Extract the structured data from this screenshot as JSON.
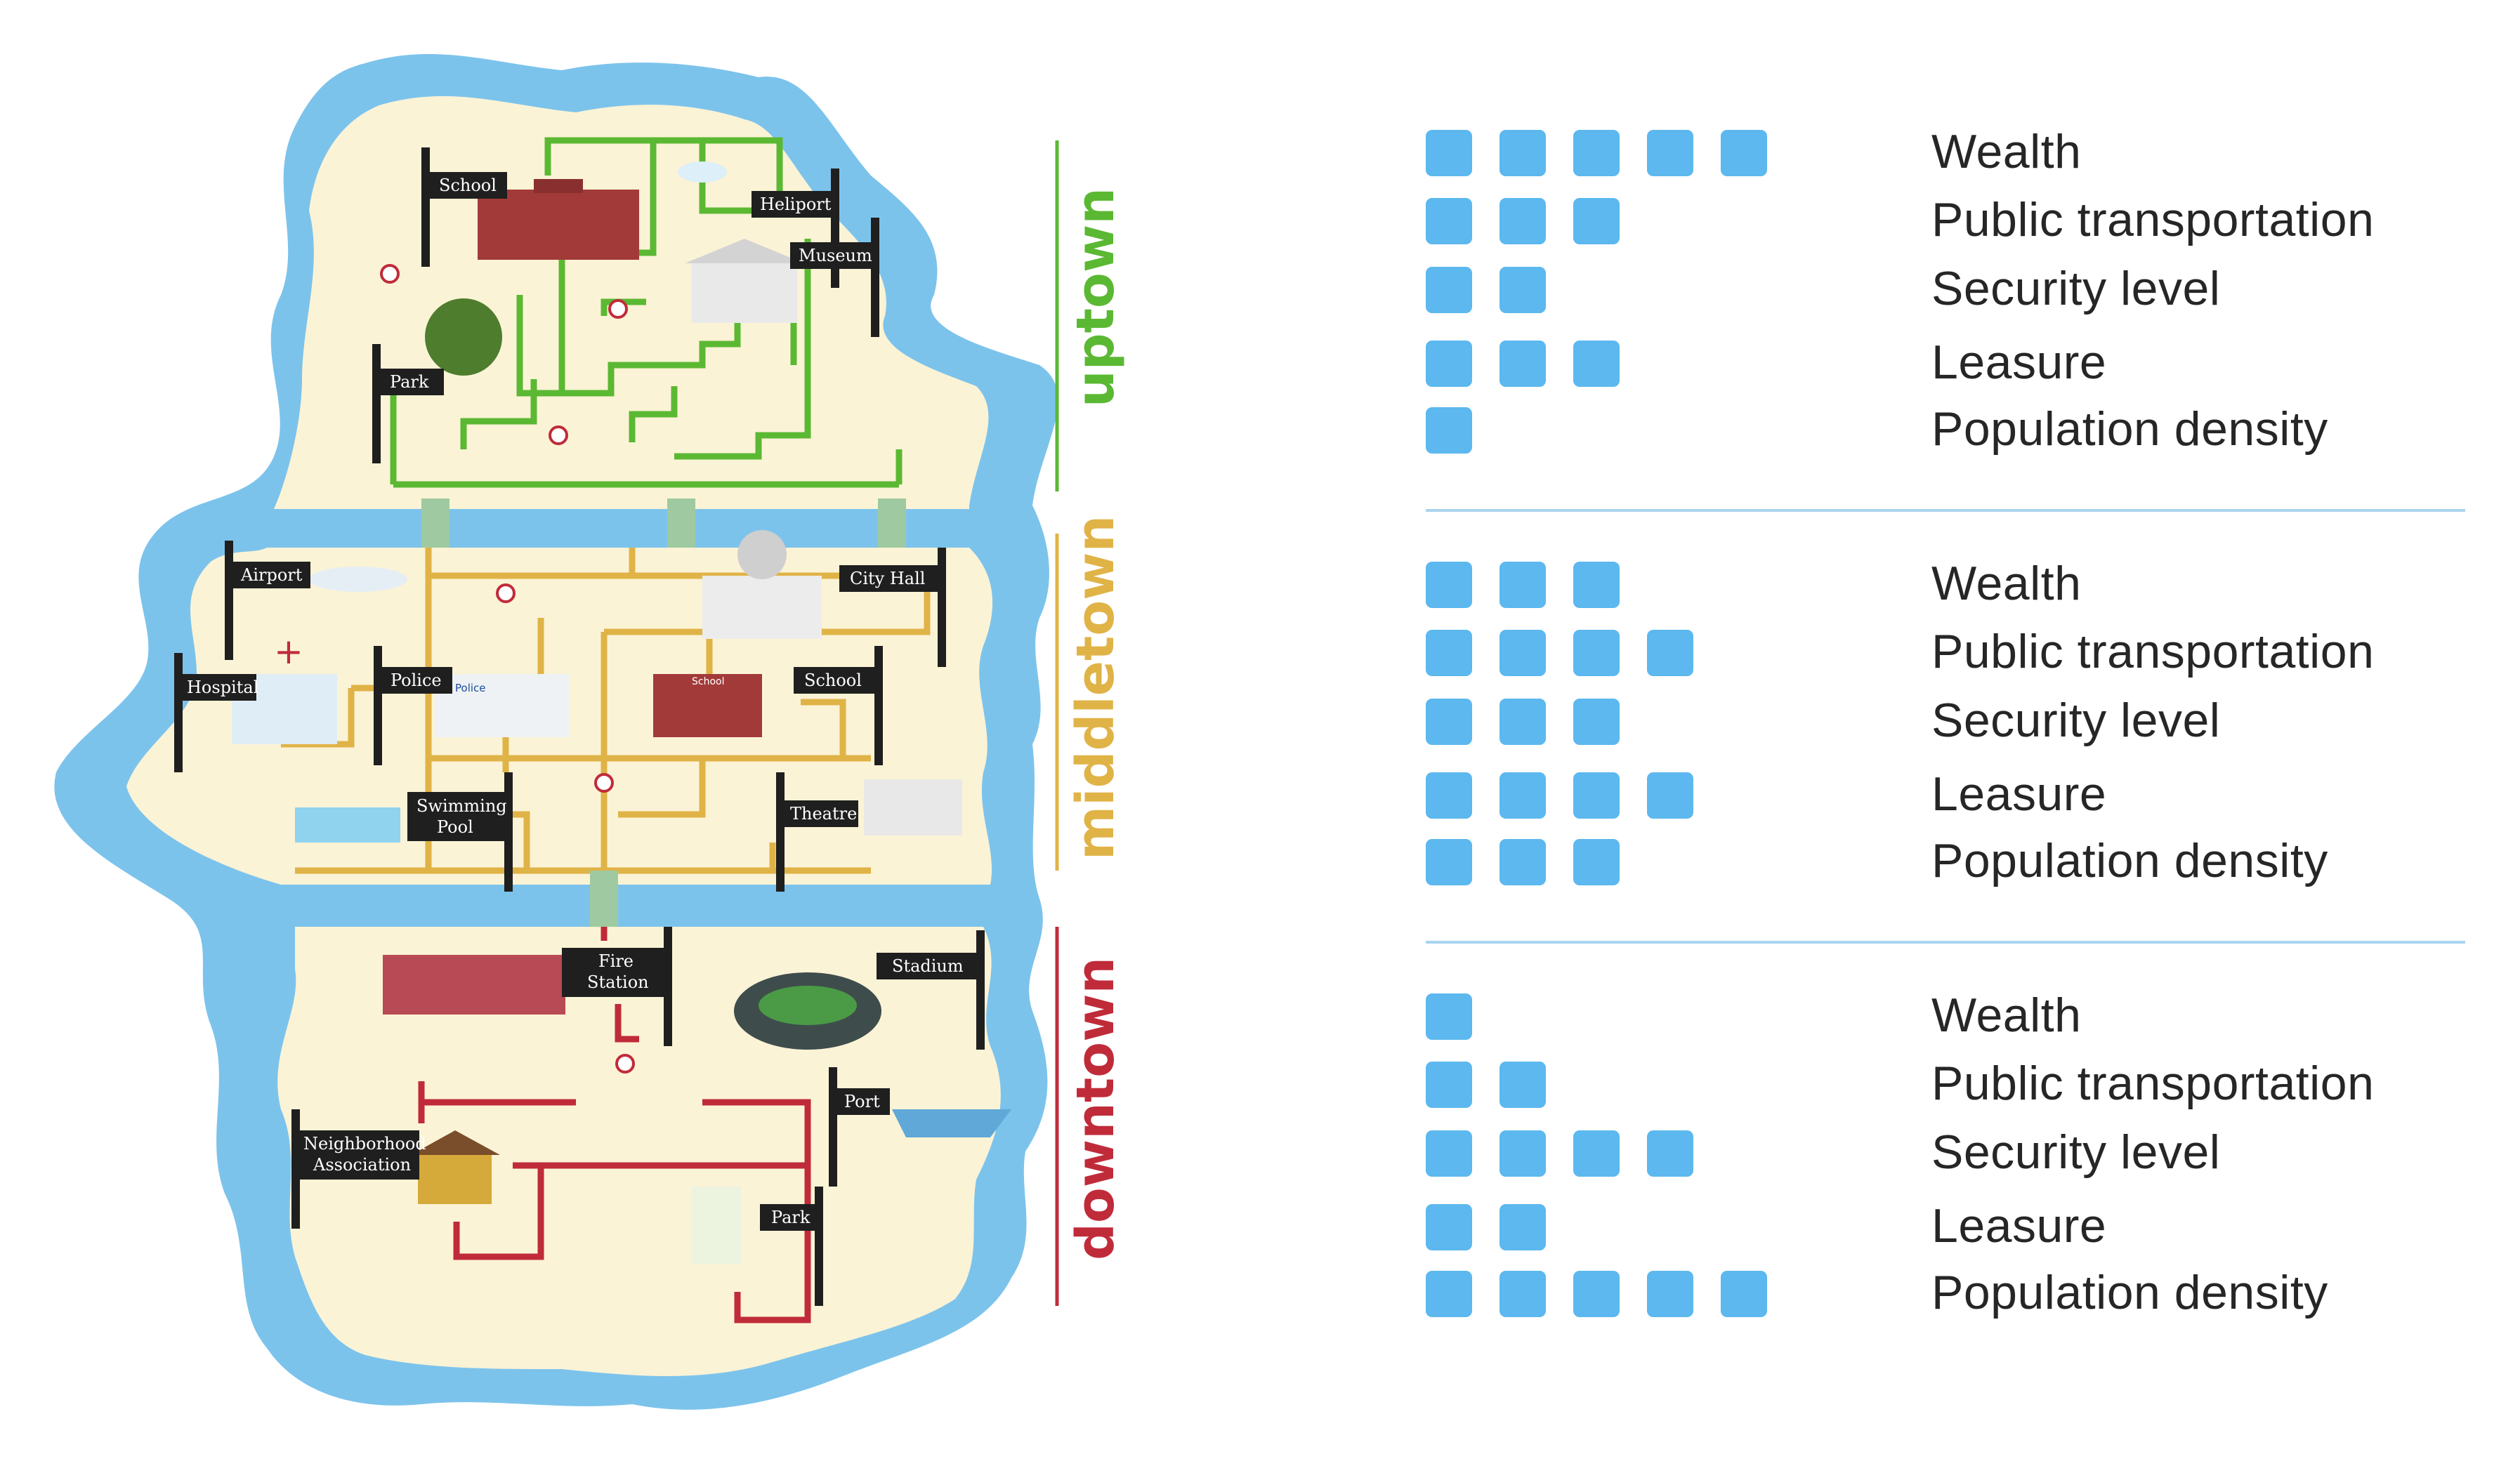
{
  "map": {
    "zones": [
      {
        "name": "uptown",
        "color": "#5bb833"
      },
      {
        "name": "middletown",
        "color": "#e0b347"
      },
      {
        "name": "downtown",
        "color": "#c02b3a"
      }
    ],
    "signs": {
      "school_up": "School",
      "heliport": "Heliport",
      "museum": "Museum",
      "park_up": "Park",
      "airport": "Airport",
      "city_hall": "City Hall",
      "hospital": "Hospital",
      "police": "Police",
      "school_mid": "School",
      "swimming_pool_1": "Swimming",
      "swimming_pool_2": "Pool",
      "theatre": "Theatre",
      "fire_station_1": "Fire",
      "fire_station_2": "Station",
      "stadium": "Stadium",
      "port": "Port",
      "neighborhood_1": "Neighborhood",
      "neighborhood_2": "Association",
      "park_down": "Park"
    },
    "building_labels": {
      "police_building": "Police",
      "school_building": "School"
    }
  },
  "panels": [
    {
      "zone": "uptown",
      "rows": [
        {
          "label": "Wealth",
          "value": 5
        },
        {
          "label": "Public transportation",
          "value": 3
        },
        {
          "label": "Security level",
          "value": 2
        },
        {
          "label": "Leasure",
          "value": 3
        },
        {
          "label": "Population density",
          "value": 1
        }
      ]
    },
    {
      "zone": "middletown",
      "rows": [
        {
          "label": "Wealth",
          "value": 3
        },
        {
          "label": "Public transportation",
          "value": 4
        },
        {
          "label": "Security level",
          "value": 3
        },
        {
          "label": "Leasure",
          "value": 4
        },
        {
          "label": "Population density",
          "value": 3
        }
      ]
    },
    {
      "zone": "downtown",
      "rows": [
        {
          "label": "Wealth",
          "value": 1
        },
        {
          "label": "Public transportation",
          "value": 2
        },
        {
          "label": "Security level",
          "value": 4
        },
        {
          "label": "Leasure",
          "value": 2
        },
        {
          "label": "Population density",
          "value": 5
        }
      ]
    }
  ],
  "colors": {
    "square": "#5cb8ee",
    "water": "#7cc3ec",
    "land": "#fbf3d6",
    "divider": "#a9d4ef"
  }
}
